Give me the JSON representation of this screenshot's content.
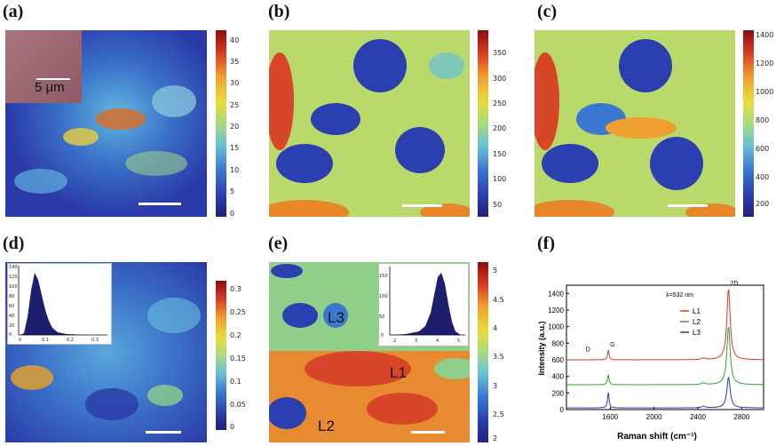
{
  "panels": {
    "a": {
      "label": "(a)",
      "scalebar_text": "5 μm",
      "ticks": [
        "40",
        "35",
        "30",
        "25",
        "20",
        "15",
        "10",
        "5",
        "0"
      ]
    },
    "b": {
      "label": "(b)",
      "ticks": [
        "350",
        "300",
        "250",
        "200",
        "150",
        "100",
        "50"
      ]
    },
    "c": {
      "label": "(c)",
      "ticks": [
        "1400",
        "1200",
        "1000",
        "800",
        "600",
        "400",
        "200"
      ]
    },
    "d": {
      "label": "(d)",
      "ticks": [
        "0.3",
        "0.25",
        "0.2",
        "0.15",
        "0.1",
        "0.05",
        "0"
      ],
      "hist_yticks": [
        "140",
        "120",
        "100",
        "80",
        "60",
        "40",
        "20",
        "0"
      ],
      "hist_xticks": [
        "0",
        "0.1",
        "0.2",
        "0.3"
      ]
    },
    "e": {
      "label": "(e)",
      "ticks": [
        "5",
        "4.5",
        "4",
        "3.5",
        "3",
        "2.5",
        "2"
      ],
      "hist_yticks": [
        "150",
        "100",
        "50",
        "0"
      ],
      "hist_xticks": [
        "2",
        "3",
        "4",
        "5"
      ],
      "region_labels": [
        "L1",
        "L2",
        "L3"
      ]
    },
    "f": {
      "label": "(f)"
    }
  },
  "chart_data": {
    "type": "line",
    "xlabel": "Raman shift (cm⁻¹)",
    "ylabel": "Intensity (a.u.)",
    "xlim": [
      1200,
      3000
    ],
    "ylim": [
      0,
      1500
    ],
    "xticks": [
      "1600",
      "2000",
      "2400",
      "2800"
    ],
    "yticks": [
      "0",
      "200",
      "400",
      "600",
      "800",
      "1000",
      "1200",
      "1400"
    ],
    "annotation": "λ=532 nm",
    "peak_labels": [
      "D",
      "G",
      "2D"
    ],
    "series": [
      {
        "name": "L1",
        "color": "#d23b2a",
        "baseline": 600,
        "g_peak": 720,
        "twod_peak": 1460
      },
      {
        "name": "L2",
        "color": "#3a9a3a",
        "baseline": 300,
        "g_peak": 420,
        "twod_peak": 1000
      },
      {
        "name": "L3",
        "color": "#2a3aa0",
        "baseline": 20,
        "g_peak": 215,
        "twod_peak": 390
      }
    ]
  }
}
